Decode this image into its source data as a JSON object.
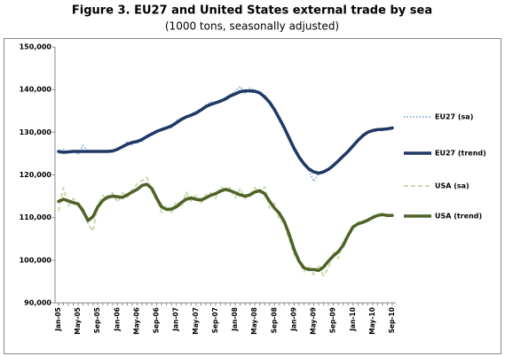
{
  "chart_data": {
    "type": "line",
    "title": "Figure 3.  EU27 and United States external trade by sea",
    "subtitle": "(1000 tons, seasonally adjusted)",
    "categories": [
      "Jan-05",
      null,
      null,
      null,
      "May-05",
      null,
      null,
      null,
      "Sep-05",
      null,
      null,
      null,
      "Jan-06",
      null,
      null,
      null,
      "May-06",
      null,
      null,
      null,
      "Sep-06",
      null,
      null,
      null,
      "Jan-07",
      null,
      null,
      null,
      "May-07",
      null,
      null,
      null,
      "Sep-07",
      null,
      null,
      null,
      "Jan-08",
      null,
      null,
      null,
      "May-08",
      null,
      null,
      null,
      "Sep-08",
      null,
      null,
      null,
      "Jan-09",
      null,
      null,
      null,
      "May-09",
      null,
      null,
      null,
      "Sep-09",
      null,
      null,
      null,
      "Jan-10",
      null,
      null,
      null,
      "May-10",
      null,
      null,
      null,
      "Sep-10"
    ],
    "series": [
      {
        "name": "EU27 (sa)",
        "color": "#8db3d9",
        "style": "dotted",
        "width": 2,
        "values": [
          125000,
          126000,
          125200,
          125800,
          124800,
          126900,
          125500,
          125300,
          125800,
          125200,
          125700,
          125400,
          126300,
          126200,
          127800,
          127100,
          128300,
          127900,
          129200,
          129800,
          130000,
          130900,
          131300,
          131100,
          132800,
          133200,
          133300,
          134300,
          134800,
          135500,
          136300,
          137200,
          136600,
          137400,
          138200,
          138800,
          139600,
          140700,
          139200,
          140300,
          139800,
          139600,
          137900,
          137200,
          135100,
          133400,
          130600,
          128100,
          125800,
          124000,
          122800,
          121100,
          118500,
          120300,
          120500,
          121500,
          122100,
          123400,
          124500,
          125700,
          126900,
          128200,
          129500,
          130200,
          130000,
          130900,
          130400,
          130800,
          130800
        ]
      },
      {
        "name": "EU27 (trend)",
        "color": "#1f3864",
        "style": "solid",
        "width": 3.5,
        "values": [
          125500,
          125300,
          125400,
          125500,
          125500,
          125500,
          125500,
          125500,
          125500,
          125500,
          125500,
          125600,
          126000,
          126600,
          127200,
          127600,
          127800,
          128300,
          129000,
          129600,
          130200,
          130600,
          131000,
          131500,
          132200,
          133000,
          133600,
          134000,
          134500,
          135200,
          136000,
          136500,
          136900,
          137300,
          137800,
          138500,
          139000,
          139500,
          139700,
          139700,
          139600,
          139200,
          138300,
          137000,
          135300,
          133200,
          131000,
          128600,
          126200,
          124200,
          122600,
          121400,
          120700,
          120400,
          120700,
          121300,
          122200,
          123300,
          124400,
          125500,
          126800,
          128100,
          129200,
          130000,
          130400,
          130600,
          130700,
          130800,
          131000
        ]
      },
      {
        "name": "USA (sa)",
        "color": "#c9dbab",
        "style": "dashed",
        "width": 2,
        "values": [
          111500,
          117000,
          112800,
          114500,
          112600,
          112200,
          108500,
          106800,
          113000,
          115200,
          114200,
          115800,
          113600,
          115800,
          114800,
          116500,
          117800,
          118600,
          119400,
          116200,
          114000,
          111200,
          112700,
          110900,
          113700,
          112400,
          115900,
          113800,
          115200,
          113200,
          115300,
          115800,
          114500,
          117200,
          116500,
          117000,
          114600,
          116800,
          114500,
          115500,
          117000,
          115800,
          117200,
          112200,
          113300,
          109500,
          108700,
          104800,
          101400,
          99800,
          97300,
          98500,
          96600,
          98900,
          96400,
          98200,
          101800,
          100400,
          104600,
          105700,
          108000,
          108900,
          109400,
          108800,
          110600,
          110200,
          111000,
          110200,
          110400
        ]
      },
      {
        "name": "USA (trend)",
        "color": "#4f6228",
        "style": "solid",
        "width": 3.5,
        "values": [
          113800,
          114300,
          113900,
          113500,
          113200,
          111500,
          109300,
          110200,
          112500,
          114000,
          114800,
          115000,
          114900,
          114700,
          115300,
          116000,
          116600,
          117500,
          117800,
          116800,
          114500,
          112500,
          111900,
          112000,
          112500,
          113500,
          114300,
          114600,
          114300,
          114100,
          114600,
          115200,
          115600,
          116200,
          116600,
          116300,
          115800,
          115300,
          115000,
          115300,
          116000,
          116300,
          115600,
          113800,
          112200,
          111000,
          109000,
          106000,
          102500,
          99800,
          98200,
          97800,
          97800,
          97600,
          98400,
          99800,
          101000,
          102000,
          103500,
          105800,
          107800,
          108500,
          108900,
          109400,
          110000,
          110500,
          110700,
          110500,
          110500
        ]
      }
    ],
    "ylim": [
      90000,
      150000
    ],
    "yticks": [
      {
        "value": 90000,
        "label": "90,000"
      },
      {
        "value": 100000,
        "label": "100,000"
      },
      {
        "value": 110000,
        "label": "110,000"
      },
      {
        "value": 120000,
        "label": "120,000"
      },
      {
        "value": 130000,
        "label": "130,000"
      },
      {
        "value": 140000,
        "label": "140,000"
      },
      {
        "value": 150000,
        "label": "150,000"
      }
    ],
    "grid": false,
    "legend": "right"
  }
}
